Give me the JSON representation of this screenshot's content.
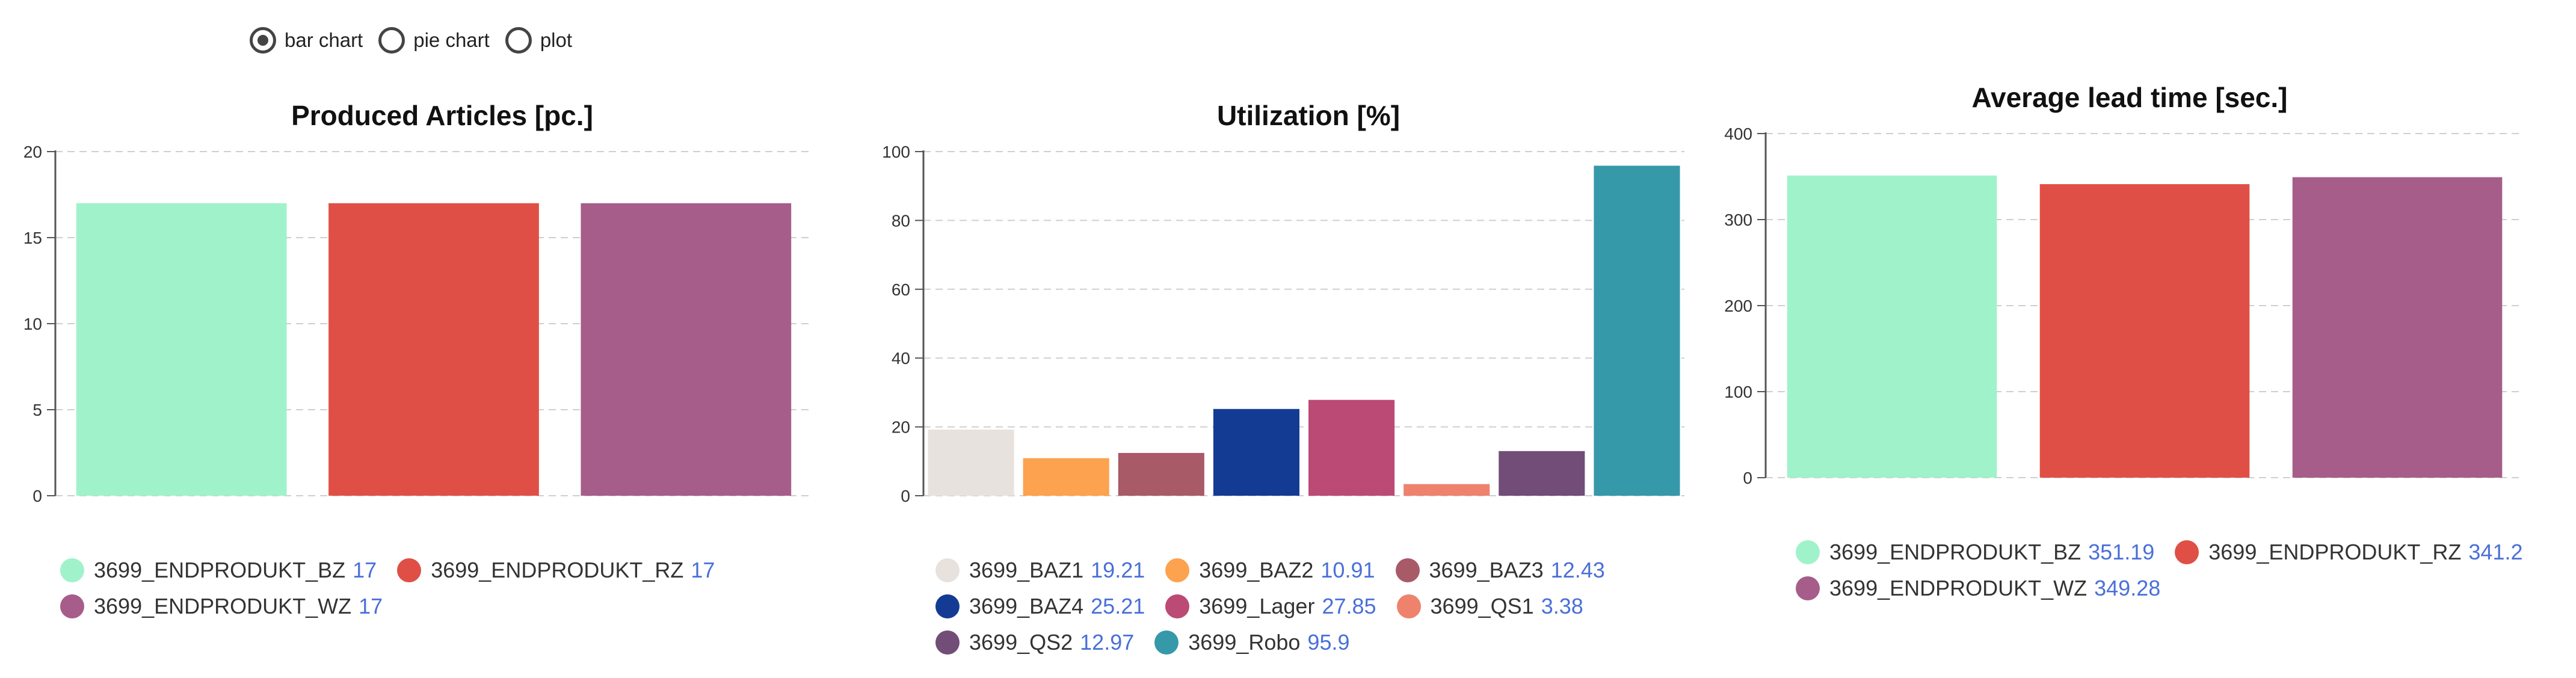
{
  "controls": {
    "options": [
      {
        "label": "bar chart",
        "checked": true
      },
      {
        "label": "pie chart",
        "checked": false
      },
      {
        "label": "plot",
        "checked": false
      }
    ]
  },
  "chart_data": [
    {
      "type": "bar",
      "title": "Produced Articles [pc.]",
      "ylim": [
        0,
        20
      ],
      "yticks": [
        0,
        5,
        10,
        15,
        20
      ],
      "categories": [
        "3699_ENDPRODUKT_BZ",
        "3699_ENDPRODUKT_RZ",
        "3699_ENDPRODUKT_WZ"
      ],
      "values": [
        17,
        17,
        17
      ],
      "colors": [
        "#a0f2cb",
        "#e04f45",
        "#a65d89"
      ],
      "legend": [
        {
          "name": "3699_ENDPRODUKT_BZ",
          "value": "17"
        },
        {
          "name": "3699_ENDPRODUKT_RZ",
          "value": "17"
        },
        {
          "name": "3699_ENDPRODUKT_WZ",
          "value": "17"
        }
      ]
    },
    {
      "type": "bar",
      "title": "Utilization [%]",
      "ylim": [
        0,
        100
      ],
      "yticks": [
        0,
        20,
        40,
        60,
        80,
        100
      ],
      "categories": [
        "3699_BAZ1",
        "3699_BAZ2",
        "3699_BAZ3",
        "3699_BAZ4",
        "3699_Lager",
        "3699_QS1",
        "3699_QS2",
        "3699_Robo"
      ],
      "values": [
        19.21,
        10.91,
        12.43,
        25.21,
        27.85,
        3.38,
        12.97,
        95.9
      ],
      "colors": [
        "#e8e2de",
        "#fda24e",
        "#a85a66",
        "#143b93",
        "#bb4a75",
        "#ee826d",
        "#714d77",
        "#3699a9"
      ],
      "legend": [
        {
          "name": "3699_BAZ1",
          "value": "19.21"
        },
        {
          "name": "3699_BAZ2",
          "value": "10.91"
        },
        {
          "name": "3699_BAZ3",
          "value": "12.43"
        },
        {
          "name": "3699_BAZ4",
          "value": "25.21"
        },
        {
          "name": "3699_Lager",
          "value": "27.85"
        },
        {
          "name": "3699_QS1",
          "value": "3.38"
        },
        {
          "name": "3699_QS2",
          "value": "12.97"
        },
        {
          "name": "3699_Robo",
          "value": "95.9"
        }
      ]
    },
    {
      "type": "bar",
      "title": "Average lead time [sec.]",
      "ylim": [
        0,
        400
      ],
      "yticks": [
        0,
        100,
        200,
        300,
        400
      ],
      "categories": [
        "3699_ENDPRODUKT_BZ",
        "3699_ENDPRODUKT_RZ",
        "3699_ENDPRODUKT_WZ"
      ],
      "values": [
        351.19,
        341.2,
        349.28
      ],
      "colors": [
        "#a0f2cb",
        "#e04f45",
        "#a65d89"
      ],
      "legend": [
        {
          "name": "3699_ENDPRODUKT_BZ",
          "value": "351.19"
        },
        {
          "name": "3699_ENDPRODUKT_RZ",
          "value": "341.2"
        },
        {
          "name": "3699_ENDPRODUKT_WZ",
          "value": "349.28"
        }
      ]
    }
  ]
}
